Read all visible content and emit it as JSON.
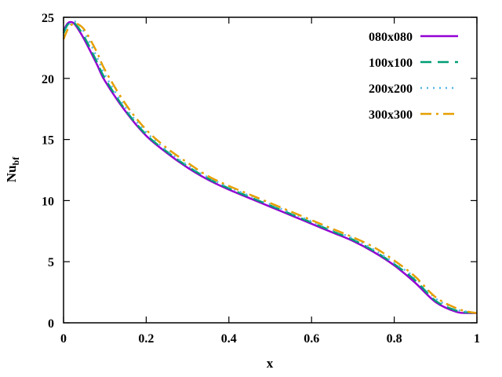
{
  "chart_data": {
    "type": "line",
    "xlabel": "x",
    "ylabel": "Nu",
    "ylabel_subscript": "bf",
    "xlim": [
      0,
      1
    ],
    "ylim": [
      0,
      25
    ],
    "x_ticks": [
      0,
      0.2,
      0.4,
      0.6,
      0.8,
      1
    ],
    "x_tick_labels": [
      "0",
      "0.2",
      "0.4",
      "0.6",
      "0.8",
      "1"
    ],
    "y_ticks": [
      0,
      5,
      10,
      15,
      20,
      25
    ],
    "y_tick_labels": [
      "0",
      "5",
      "10",
      "15",
      "20",
      "25"
    ],
    "grid": false,
    "legend_position": "top-right",
    "series": [
      {
        "name": "080x080",
        "color": "#9400d3",
        "dash": "solid",
        "x": [
          0,
          0.01,
          0.02,
          0.03,
          0.05,
          0.08,
          0.1,
          0.15,
          0.2,
          0.25,
          0.3,
          0.35,
          0.4,
          0.45,
          0.5,
          0.55,
          0.6,
          0.65,
          0.7,
          0.75,
          0.8,
          0.85,
          0.9,
          0.95,
          0.98,
          1.0
        ],
        "y": [
          23.9,
          24.5,
          24.6,
          24.3,
          23.2,
          21.2,
          19.8,
          17.3,
          15.3,
          13.9,
          12.7,
          11.7,
          10.9,
          10.2,
          9.5,
          8.8,
          8.1,
          7.4,
          6.7,
          5.8,
          4.7,
          3.3,
          1.7,
          0.9,
          0.8,
          0.8
        ]
      },
      {
        "name": "100x100",
        "color": "#009e73",
        "dash": "long-dash",
        "x": [
          0,
          0.01,
          0.02,
          0.03,
          0.05,
          0.08,
          0.1,
          0.15,
          0.2,
          0.25,
          0.3,
          0.35,
          0.4,
          0.45,
          0.5,
          0.55,
          0.6,
          0.65,
          0.7,
          0.75,
          0.8,
          0.85,
          0.9,
          0.95,
          0.98,
          1.0
        ],
        "y": [
          23.7,
          24.4,
          24.6,
          24.4,
          23.4,
          21.4,
          20.0,
          17.4,
          15.4,
          14.0,
          12.8,
          11.8,
          11.0,
          10.3,
          9.6,
          8.9,
          8.2,
          7.5,
          6.8,
          5.9,
          4.8,
          3.5,
          1.8,
          1.0,
          0.85,
          0.8
        ]
      },
      {
        "name": "200x200",
        "color": "#56b4e9",
        "dash": "dotted",
        "x": [
          0,
          0.01,
          0.02,
          0.03,
          0.05,
          0.08,
          0.1,
          0.15,
          0.2,
          0.25,
          0.3,
          0.35,
          0.4,
          0.45,
          0.5,
          0.55,
          0.6,
          0.65,
          0.7,
          0.75,
          0.8,
          0.85,
          0.9,
          0.95,
          0.98,
          1.0
        ],
        "y": [
          23.5,
          24.2,
          24.6,
          24.6,
          23.8,
          21.8,
          20.3,
          17.6,
          15.6,
          14.1,
          12.9,
          11.9,
          11.1,
          10.4,
          9.7,
          9.0,
          8.3,
          7.6,
          6.9,
          6.0,
          4.9,
          3.7,
          2.0,
          1.1,
          0.9,
          0.8
        ]
      },
      {
        "name": "300x300",
        "color": "#e69f00",
        "dash": "dash-dot",
        "x": [
          0,
          0.01,
          0.02,
          0.03,
          0.05,
          0.08,
          0.1,
          0.15,
          0.2,
          0.25,
          0.3,
          0.35,
          0.4,
          0.45,
          0.5,
          0.55,
          0.6,
          0.65,
          0.7,
          0.75,
          0.8,
          0.85,
          0.9,
          0.95,
          0.98,
          1.0
        ],
        "y": [
          23.2,
          24.0,
          24.4,
          24.5,
          24.0,
          22.2,
          20.7,
          17.9,
          15.8,
          14.3,
          13.1,
          12.0,
          11.2,
          10.5,
          9.8,
          9.1,
          8.4,
          7.7,
          7.0,
          6.2,
          5.1,
          3.8,
          2.1,
          1.2,
          0.9,
          0.8
        ]
      }
    ]
  }
}
